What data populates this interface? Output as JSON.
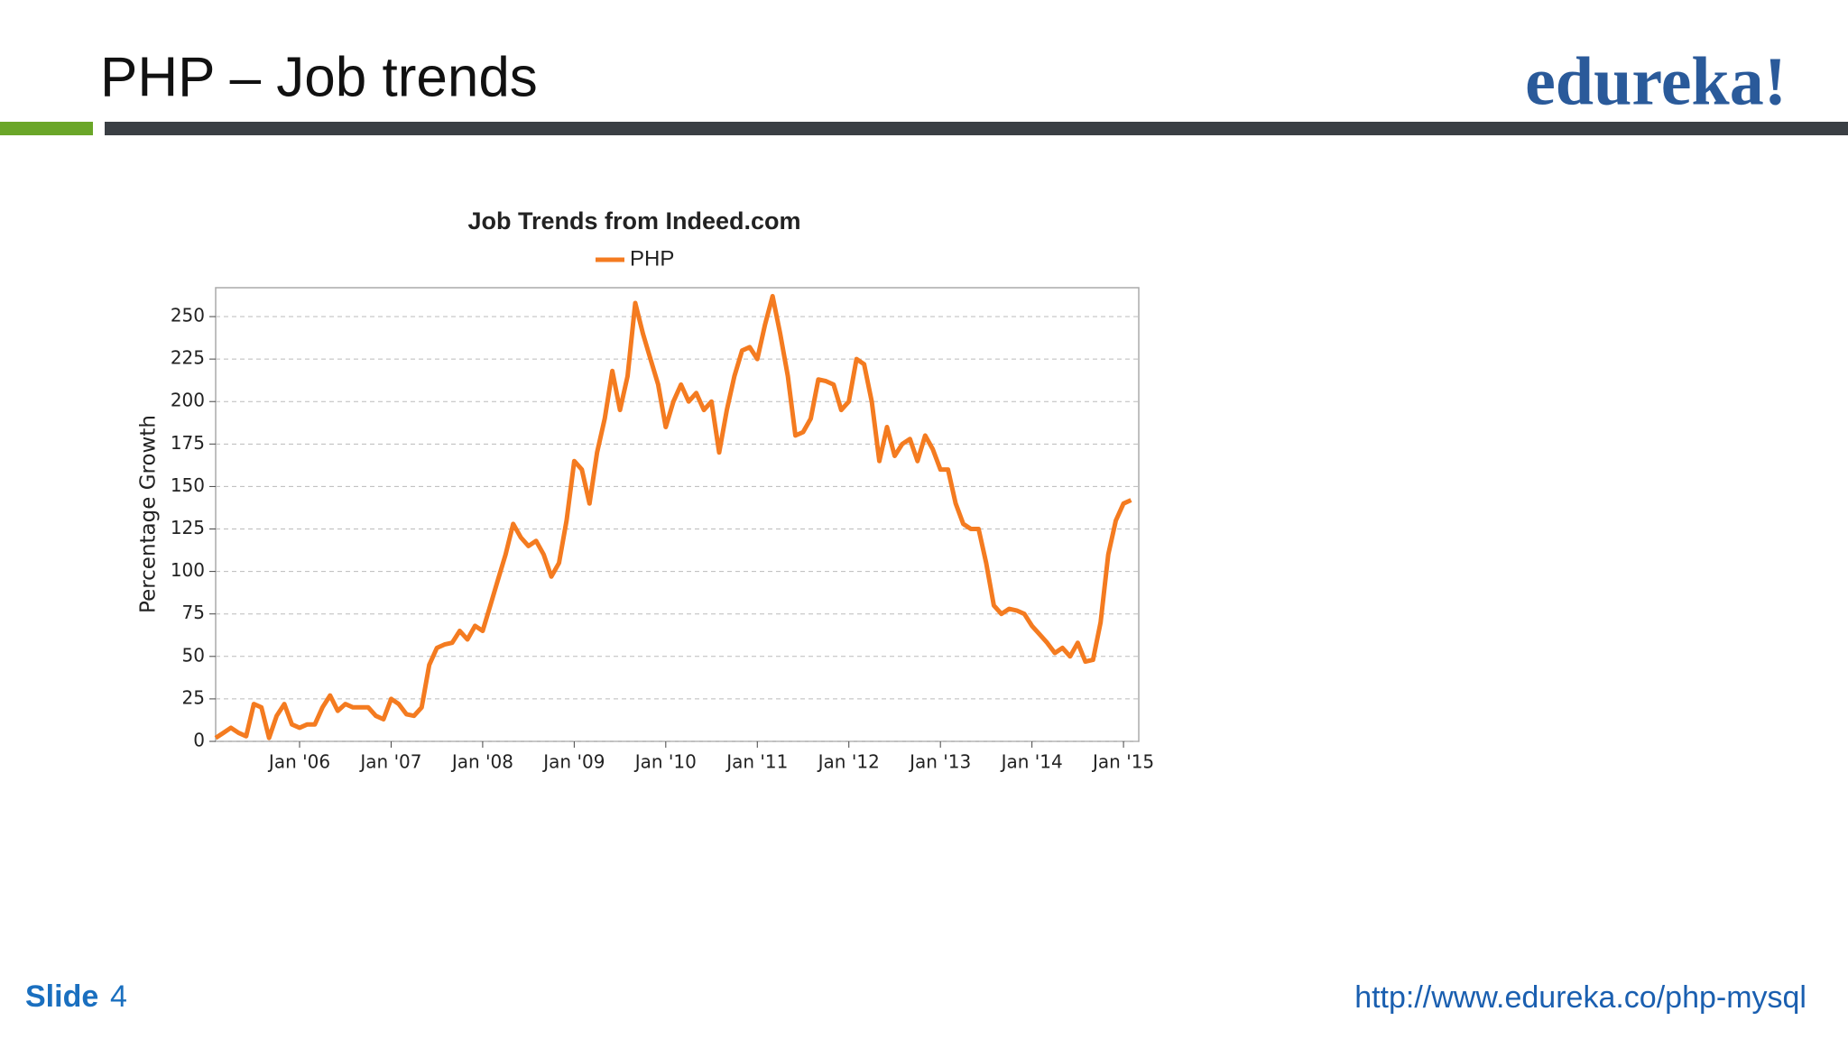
{
  "slide": {
    "title": "PHP – Job trends",
    "logo": "edureka!",
    "slide_label": "Slide",
    "slide_number": 4,
    "url": "http://www.edureka.co/php-mysql"
  },
  "chart_data": {
    "type": "line",
    "title": "Job Trends from Indeed.com",
    "y_label": "Percentage Growth",
    "grid": true,
    "legend": "top",
    "ylim": [
      0,
      267
    ],
    "yticks": [
      0,
      25,
      50,
      75,
      100,
      125,
      150,
      175,
      200,
      225,
      250
    ],
    "xlim": [
      "2005-02",
      "2015-03"
    ],
    "xticks": [
      {
        "value": "2006-01",
        "label": "Jan '06"
      },
      {
        "value": "2007-01",
        "label": "Jan '07"
      },
      {
        "value": "2008-01",
        "label": "Jan '08"
      },
      {
        "value": "2009-01",
        "label": "Jan '09"
      },
      {
        "value": "2010-01",
        "label": "Jan '10"
      },
      {
        "value": "2011-01",
        "label": "Jan '11"
      },
      {
        "value": "2012-01",
        "label": "Jan '12"
      },
      {
        "value": "2013-01",
        "label": "Jan '13"
      },
      {
        "value": "2014-01",
        "label": "Jan '14"
      },
      {
        "value": "2015-01",
        "label": "Jan '15"
      }
    ],
    "x": [
      "2005-02",
      "2005-03",
      "2005-04",
      "2005-05",
      "2005-06",
      "2005-07",
      "2005-08",
      "2005-09",
      "2005-10",
      "2005-11",
      "2005-12",
      "2006-01",
      "2006-02",
      "2006-03",
      "2006-04",
      "2006-05",
      "2006-06",
      "2006-07",
      "2006-08",
      "2006-09",
      "2006-10",
      "2006-11",
      "2006-12",
      "2007-01",
      "2007-02",
      "2007-03",
      "2007-04",
      "2007-05",
      "2007-06",
      "2007-07",
      "2007-08",
      "2007-09",
      "2007-10",
      "2007-11",
      "2007-12",
      "2008-01",
      "2008-02",
      "2008-03",
      "2008-04",
      "2008-05",
      "2008-06",
      "2008-07",
      "2008-08",
      "2008-09",
      "2008-10",
      "2008-11",
      "2008-12",
      "2009-01",
      "2009-02",
      "2009-03",
      "2009-04",
      "2009-05",
      "2009-06",
      "2009-07",
      "2009-08",
      "2009-09",
      "2009-10",
      "2009-11",
      "2009-12",
      "2010-01",
      "2010-02",
      "2010-03",
      "2010-04",
      "2010-05",
      "2010-06",
      "2010-07",
      "2010-08",
      "2010-09",
      "2010-10",
      "2010-11",
      "2010-12",
      "2011-01",
      "2011-02",
      "2011-03",
      "2011-04",
      "2011-05",
      "2011-06",
      "2011-07",
      "2011-08",
      "2011-09",
      "2011-10",
      "2011-11",
      "2011-12",
      "2012-01",
      "2012-02",
      "2012-03",
      "2012-04",
      "2012-05",
      "2012-06",
      "2012-07",
      "2012-08",
      "2012-09",
      "2012-10",
      "2012-11",
      "2012-12",
      "2013-01",
      "2013-02",
      "2013-03",
      "2013-04",
      "2013-05",
      "2013-06",
      "2013-07",
      "2013-08",
      "2013-09",
      "2013-10",
      "2013-11",
      "2013-12",
      "2014-01",
      "2014-02",
      "2014-03",
      "2014-04",
      "2014-05",
      "2014-06",
      "2014-07",
      "2014-08",
      "2014-09",
      "2014-10",
      "2014-11",
      "2014-12",
      "2015-01",
      "2015-02"
    ],
    "series": [
      {
        "name": "PHP",
        "color": "#f47b20",
        "values": [
          2,
          5,
          8,
          5,
          3,
          22,
          20,
          2,
          15,
          22,
          10,
          8,
          10,
          10,
          20,
          27,
          18,
          22,
          20,
          20,
          20,
          15,
          13,
          25,
          22,
          16,
          15,
          20,
          45,
          55,
          57,
          58,
          65,
          60,
          68,
          65,
          80,
          95,
          110,
          128,
          120,
          115,
          118,
          110,
          97,
          105,
          130,
          165,
          160,
          140,
          170,
          190,
          218,
          195,
          215,
          258,
          240,
          225,
          210,
          185,
          200,
          210,
          200,
          205,
          195,
          200,
          170,
          195,
          215,
          230,
          232,
          225,
          245,
          262,
          240,
          215,
          180,
          182,
          190,
          213,
          212,
          210,
          195,
          200,
          225,
          222,
          200,
          165,
          185,
          168,
          175,
          178,
          165,
          180,
          172,
          160,
          160,
          140,
          128,
          125,
          125,
          105,
          80,
          75,
          78,
          77,
          75,
          68,
          63,
          58,
          52,
          55,
          50,
          58,
          47,
          48,
          70,
          110,
          130,
          140,
          142
        ]
      }
    ]
  }
}
